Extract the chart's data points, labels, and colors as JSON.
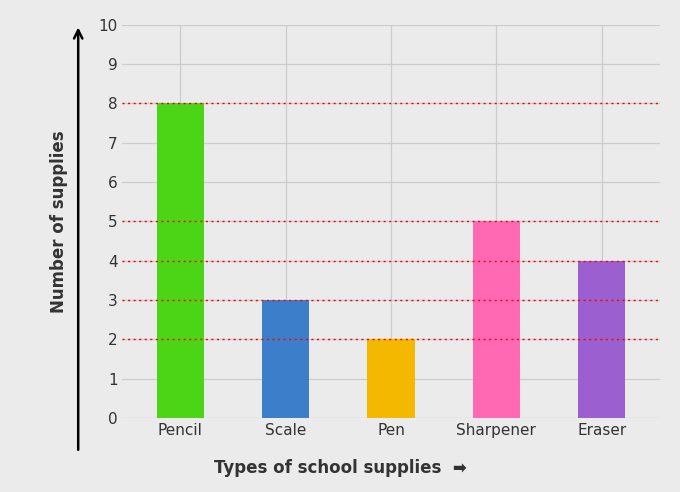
{
  "categories": [
    "Pencil",
    "Scale",
    "Pen",
    "Sharpener",
    "Eraser"
  ],
  "values": [
    8,
    3,
    2,
    5,
    4
  ],
  "bar_colors": [
    "#4cd417",
    "#3d7ecb",
    "#f5b800",
    "#ff69b4",
    "#9b5fcf"
  ],
  "xlabel": "Types of school supplies",
  "ylabel": "Number of supplies",
  "ylim": [
    0,
    10
  ],
  "yticks": [
    0,
    1,
    2,
    3,
    4,
    5,
    6,
    7,
    8,
    9,
    10
  ],
  "background_color": "#ebebeb",
  "plot_bg_color": "#ebebeb",
  "grid_color": "#cccccc",
  "dashed_lines": [
    8,
    5,
    4,
    3,
    2
  ],
  "dashed_color": "#ff0000",
  "bar_width": 0.45
}
